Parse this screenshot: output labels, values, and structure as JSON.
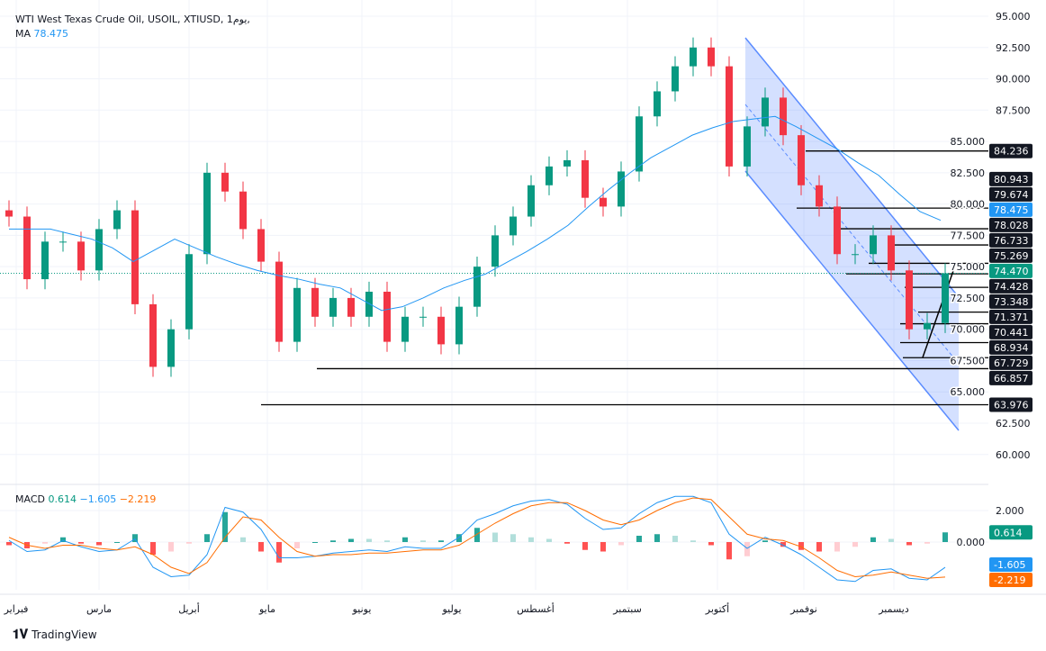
{
  "legend": {
    "title": "WTI West Texas Crude Oil, USOIL, XTIUSD, 1يوم,",
    "ma_label": "MA",
    "ma_value": "78.475"
  },
  "macd_legend": {
    "label": "MACD",
    "hist": "0.614",
    "macd": "−1.605",
    "signal": "−2.219"
  },
  "brand": "TradingView",
  "colors": {
    "up": "#089981",
    "down": "#f23645",
    "ma": "#2196f3",
    "macd": "#2196f3",
    "signal": "#ff6d00",
    "channel": "#2962ff"
  },
  "chart_data": {
    "type": "candlestick",
    "price_ticks": [
      "95.000",
      "92.500",
      "90.000",
      "87.500",
      "85.000",
      "82.500",
      "80.000",
      "77.500",
      "75.000",
      "72.500",
      "70.000",
      "67.500",
      "65.000",
      "62.500",
      "60.000"
    ],
    "price_range": [
      60,
      95
    ],
    "month_labels": [
      "فبراير",
      "مارس",
      "أبريل",
      "مايو",
      "يونيو",
      "يوليو",
      "أغسطس",
      "سبتمبر",
      "أكتوبر",
      "نوفمبر",
      "ديسمبر"
    ],
    "closes": [
      79,
      74,
      77,
      77,
      74.7,
      78,
      79.5,
      72,
      67,
      70,
      76,
      82.5,
      81,
      78,
      75.4,
      69,
      73.3,
      71,
      72.5,
      71,
      73,
      69,
      71,
      71,
      68.8,
      71.8,
      75,
      77.5,
      79,
      81.5,
      83,
      83.5,
      80.5,
      79.8,
      82.6,
      87,
      89,
      91,
      92.5,
      91,
      83,
      86.2,
      88.5,
      85.5,
      81.5,
      79.8,
      76,
      76,
      77.5,
      74.7,
      70,
      70.5,
      74.47
    ],
    "ma": [
      78,
      78,
      78,
      77.6,
      77.2,
      76.5,
      75.4,
      76.3,
      77.2,
      76.5,
      75.8,
      75.2,
      74.7,
      74.3,
      74,
      73.6,
      73.3,
      72.4,
      71.5,
      71.8,
      72.5,
      73.3,
      73.9,
      74.4,
      75.3,
      76.2,
      77.2,
      78.3,
      79.8,
      81.2,
      82.5,
      83.7,
      84.6,
      85.5,
      86.1,
      86.6,
      86.8,
      87,
      86.2,
      85.3,
      84.4,
      83.3,
      82.3,
      80.8,
      79.4,
      78.7
    ],
    "ma_value": 78.475,
    "last_price": "74.470",
    "levels": [
      "84.236",
      "80.943",
      "79.674",
      "78.028",
      "76.733",
      "75.269",
      "74.428",
      "73.348",
      "71.371",
      "70.441",
      "68.934",
      "67.729",
      "66.857",
      "63.976"
    ],
    "ma_label": "78.475",
    "macd": {
      "ticks": [
        "2.000",
        "0.000"
      ],
      "macd": [
        0.1,
        -0.6,
        -0.5,
        0.1,
        -0.3,
        -0.6,
        -0.5,
        0.2,
        -1.6,
        -2.2,
        -2.1,
        -0.8,
        2.2,
        1.9,
        0.8,
        -1.0,
        -1.0,
        -0.9,
        -0.7,
        -0.6,
        -0.5,
        -0.6,
        -0.3,
        -0.4,
        -0.4,
        0.3,
        1.4,
        1.8,
        2.3,
        2.6,
        2.7,
        2.4,
        1.5,
        0.8,
        0.9,
        1.8,
        2.5,
        2.9,
        2.9,
        2.5,
        0.5,
        -0.4,
        0.3,
        -0.2,
        -0.8,
        -1.6,
        -2.4,
        -2.5,
        -1.8,
        -1.7,
        -2.3,
        -2.4,
        -1.605
      ],
      "signal": [
        0.3,
        -0.2,
        -0.4,
        -0.2,
        -0.2,
        -0.4,
        -0.5,
        -0.3,
        -0.8,
        -1.6,
        -2.0,
        -1.3,
        0.3,
        1.6,
        1.4,
        0.3,
        -0.6,
        -0.9,
        -0.8,
        -0.8,
        -0.7,
        -0.7,
        -0.6,
        -0.5,
        -0.5,
        -0.2,
        0.5,
        1.2,
        1.8,
        2.3,
        2.5,
        2.5,
        2.0,
        1.4,
        1.1,
        1.4,
        2.0,
        2.5,
        2.8,
        2.7,
        1.6,
        0.5,
        0.2,
        0.1,
        -0.3,
        -1.0,
        -1.8,
        -2.2,
        -2.1,
        -1.9,
        -2.1,
        -2.3,
        -2.219
      ],
      "labels": {
        "hist": "0.614",
        "macd": "-1.605",
        "signal": "-2.219"
      }
    }
  }
}
